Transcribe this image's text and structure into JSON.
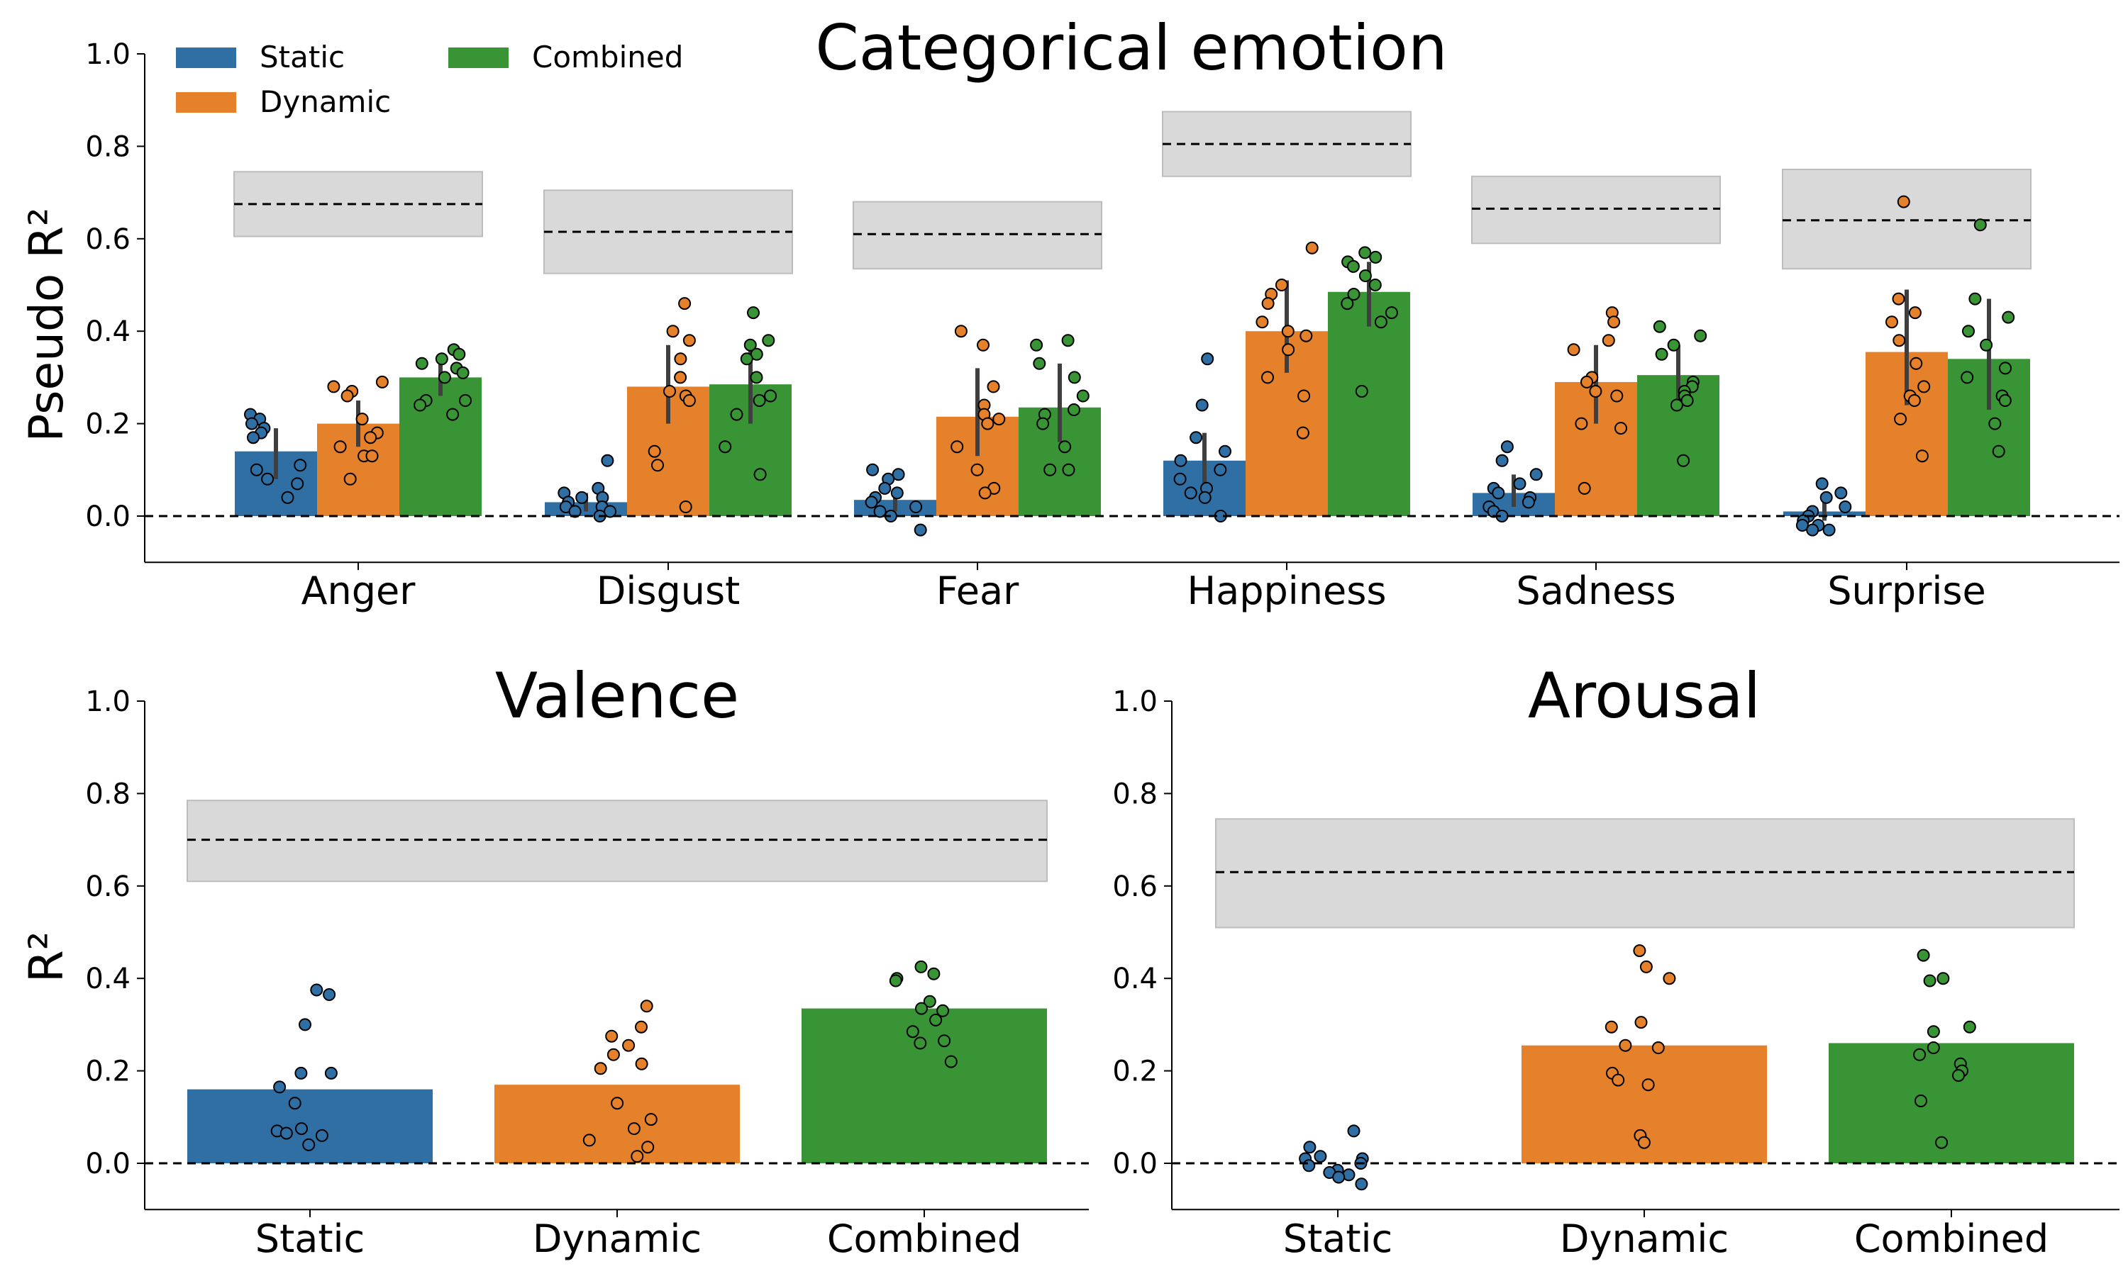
{
  "colors": {
    "static": "#2f6fa4",
    "dynamic": "#e5802b",
    "combined": "#389435",
    "ceiling_band": "#d9d9d9",
    "errorbar": "#3f3f3f"
  },
  "chart_data": [
    {
      "type": "bar",
      "title": "Categorical emotion",
      "ylabel": "Pseudo R²",
      "ylim": [
        -0.1,
        1.0
      ],
      "yticks": [
        "0.0",
        "0.2",
        "0.4",
        "0.6",
        "0.8",
        "1.0"
      ],
      "legend": {
        "placement": "top-left",
        "entries": [
          "Static",
          "Dynamic",
          "Combined"
        ]
      },
      "categories": [
        "Anger",
        "Disgust",
        "Fear",
        "Happiness",
        "Sadness",
        "Surprise"
      ],
      "series": [
        {
          "name": "Static",
          "color": "#2f6fa4",
          "values": [
            0.14,
            0.03,
            0.035,
            0.12,
            0.05,
            0.01
          ],
          "err": [
            [
              0.08,
              0.19
            ],
            [
              0.01,
              0.05
            ],
            [
              0.01,
              0.06
            ],
            [
              0.05,
              0.18
            ],
            [
              0.02,
              0.09
            ],
            [
              -0.01,
              0.03
            ]
          ]
        },
        {
          "name": "Dynamic",
          "color": "#e5802b",
          "values": [
            0.2,
            0.28,
            0.215,
            0.4,
            0.29,
            0.355
          ],
          "err": [
            [
              0.15,
              0.25
            ],
            [
              0.2,
              0.37
            ],
            [
              0.13,
              0.32
            ],
            [
              0.31,
              0.51
            ],
            [
              0.2,
              0.37
            ],
            [
              0.24,
              0.49
            ]
          ]
        },
        {
          "name": "Combined",
          "color": "#389435",
          "values": [
            0.3,
            0.285,
            0.235,
            0.485,
            0.305,
            0.34
          ],
          "err": [
            [
              0.26,
              0.34
            ],
            [
              0.2,
              0.36
            ],
            [
              0.16,
              0.33
            ],
            [
              0.41,
              0.55
            ],
            [
              0.23,
              0.37
            ],
            [
              0.23,
              0.47
            ]
          ]
        }
      ],
      "points": {
        "Static": [
          [
            0.22,
            0.21,
            0.2,
            0.19,
            0.18,
            0.17,
            0.11,
            0.1,
            0.08,
            0.07,
            0.04
          ],
          [
            0.12,
            0.06,
            0.05,
            0.04,
            0.04,
            0.03,
            0.02,
            0.02,
            0.01,
            0.01,
            0.0
          ],
          [
            0.1,
            0.09,
            0.08,
            0.06,
            0.05,
            0.04,
            0.03,
            0.02,
            0.01,
            0.0,
            -0.03
          ],
          [
            0.34,
            0.24,
            0.17,
            0.14,
            0.12,
            0.1,
            0.08,
            0.06,
            0.05,
            0.04,
            0.0
          ],
          [
            0.15,
            0.12,
            0.09,
            0.07,
            0.06,
            0.05,
            0.04,
            0.03,
            0.02,
            0.01,
            0.0
          ],
          [
            0.07,
            0.05,
            0.04,
            0.02,
            0.01,
            0.0,
            -0.01,
            -0.02,
            -0.02,
            -0.03,
            -0.03
          ]
        ],
        "Dynamic": [
          [
            0.29,
            0.28,
            0.27,
            0.26,
            0.21,
            0.18,
            0.17,
            0.15,
            0.13,
            0.13,
            0.08
          ],
          [
            0.46,
            0.4,
            0.38,
            0.34,
            0.3,
            0.27,
            0.26,
            0.25,
            0.14,
            0.11,
            0.02
          ],
          [
            0.4,
            0.37,
            0.28,
            0.24,
            0.22,
            0.21,
            0.2,
            0.15,
            0.1,
            0.06,
            0.05
          ],
          [
            0.58,
            0.5,
            0.48,
            0.46,
            0.42,
            0.4,
            0.39,
            0.36,
            0.3,
            0.26,
            0.18
          ],
          [
            0.44,
            0.42,
            0.38,
            0.36,
            0.3,
            0.29,
            0.27,
            0.26,
            0.2,
            0.19,
            0.06
          ],
          [
            0.68,
            0.47,
            0.44,
            0.42,
            0.38,
            0.33,
            0.28,
            0.26,
            0.25,
            0.21,
            0.13
          ]
        ],
        "Combined": [
          [
            0.36,
            0.35,
            0.34,
            0.33,
            0.32,
            0.31,
            0.3,
            0.25,
            0.25,
            0.24,
            0.22
          ],
          [
            0.44,
            0.38,
            0.37,
            0.35,
            0.34,
            0.3,
            0.26,
            0.25,
            0.22,
            0.15,
            0.09
          ],
          [
            0.38,
            0.37,
            0.33,
            0.3,
            0.26,
            0.23,
            0.22,
            0.2,
            0.15,
            0.1,
            0.1
          ],
          [
            0.57,
            0.56,
            0.55,
            0.54,
            0.52,
            0.5,
            0.48,
            0.46,
            0.44,
            0.42,
            0.27
          ],
          [
            0.41,
            0.39,
            0.37,
            0.35,
            0.29,
            0.28,
            0.27,
            0.26,
            0.25,
            0.24,
            0.12
          ],
          [
            0.63,
            0.47,
            0.43,
            0.4,
            0.37,
            0.32,
            0.3,
            0.26,
            0.25,
            0.2,
            0.14
          ]
        ]
      },
      "noise_ceiling": {
        "values": [
          0.675,
          0.615,
          0.61,
          0.805,
          0.665,
          0.64
        ],
        "band": [
          [
            0.605,
            0.745
          ],
          [
            0.525,
            0.705
          ],
          [
            0.535,
            0.68
          ],
          [
            0.735,
            0.875
          ],
          [
            0.59,
            0.735
          ],
          [
            0.535,
            0.75
          ]
        ]
      }
    },
    {
      "type": "bar",
      "title": "Valence",
      "ylabel": "R²",
      "ylim": [
        -0.1,
        1.0
      ],
      "yticks": [
        "0.0",
        "0.2",
        "0.4",
        "0.6",
        "0.8",
        "1.0"
      ],
      "categories": [
        "Static",
        "Dynamic",
        "Combined"
      ],
      "colors": [
        "#2f6fa4",
        "#e5802b",
        "#389435"
      ],
      "values": [
        0.16,
        0.17,
        0.335
      ],
      "points": [
        [
          0.375,
          0.365,
          0.3,
          0.195,
          0.195,
          0.165,
          0.13,
          0.075,
          0.07,
          0.065,
          0.06,
          0.04
        ],
        [
          0.34,
          0.295,
          0.275,
          0.255,
          0.235,
          0.215,
          0.205,
          0.13,
          0.095,
          0.075,
          0.05,
          0.035,
          0.015
        ],
        [
          0.425,
          0.41,
          0.4,
          0.395,
          0.35,
          0.335,
          0.33,
          0.31,
          0.285,
          0.265,
          0.26,
          0.22
        ]
      ],
      "noise_ceiling": {
        "value": 0.7,
        "band": [
          0.61,
          0.785
        ]
      }
    },
    {
      "type": "bar",
      "title": "Arousal",
      "ylabel": "",
      "ylim": [
        -0.1,
        1.0
      ],
      "yticks": [
        "0.0",
        "0.2",
        "0.4",
        "0.6",
        "0.8",
        "1.0"
      ],
      "categories": [
        "Static",
        "Dynamic",
        "Combined"
      ],
      "colors": [
        "#2f6fa4",
        "#e5802b",
        "#389435"
      ],
      "values": [
        0.0,
        0.255,
        0.26
      ],
      "points": [
        [
          0.07,
          0.035,
          0.015,
          0.01,
          0.01,
          0.0,
          -0.005,
          -0.015,
          -0.02,
          -0.025,
          -0.03,
          -0.045
        ],
        [
          0.46,
          0.425,
          0.4,
          0.305,
          0.295,
          0.255,
          0.25,
          0.195,
          0.18,
          0.17,
          0.06,
          0.045
        ],
        [
          0.45,
          0.4,
          0.395,
          0.295,
          0.285,
          0.25,
          0.235,
          0.215,
          0.2,
          0.19,
          0.135,
          0.045
        ]
      ],
      "noise_ceiling": {
        "value": 0.63,
        "band": [
          0.51,
          0.745
        ]
      }
    }
  ]
}
